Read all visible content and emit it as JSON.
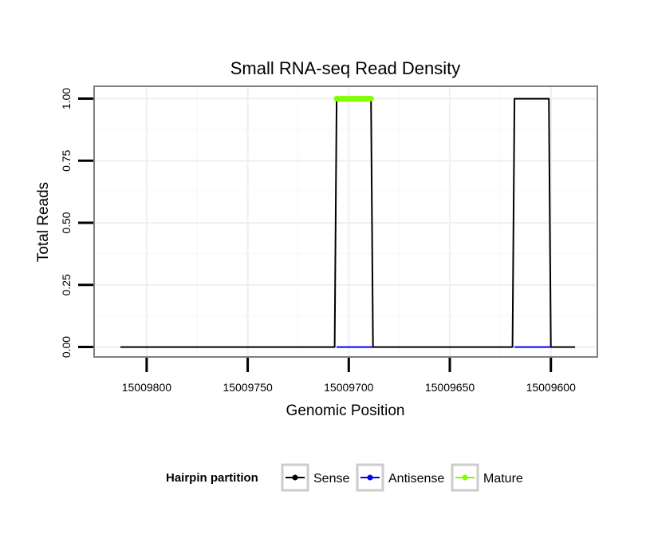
{
  "chart_data": {
    "type": "line",
    "title": "Small RNA-seq Read Density",
    "xlabel": "Genomic Position",
    "ylabel": "Total Reads",
    "x_reversed": true,
    "xlim": [
      15009826,
      15009577
    ],
    "ylim": [
      -0.04,
      1.05
    ],
    "x_ticks": [
      15009800,
      15009750,
      15009700,
      15009650,
      15009600
    ],
    "x_tick_labels": [
      "15009800",
      "15009750",
      "15009700",
      "15009650",
      "15009600"
    ],
    "y_ticks": [
      0,
      0.25,
      0.5,
      0.75,
      1.0
    ],
    "y_tick_labels": [
      "0.00",
      "0.25",
      "0.50",
      "0.75",
      "1.00"
    ],
    "grid": true,
    "legend": {
      "title": "Hairpin partition",
      "position": "bottom",
      "entries": [
        {
          "name": "Sense",
          "color": "#000000"
        },
        {
          "name": "Antisense",
          "color": "#0000ff"
        },
        {
          "name": "Mature",
          "color": "#7fff00"
        }
      ]
    },
    "series": [
      {
        "name": "Sense",
        "color": "#000000",
        "x": [
          15009813,
          15009707,
          15009706,
          15009689,
          15009688,
          15009619,
          15009618,
          15009601,
          15009600,
          15009588
        ],
        "y": [
          0,
          0,
          1,
          1,
          0,
          0,
          1,
          1,
          0,
          0
        ]
      },
      {
        "name": "Antisense",
        "color": "#0000ff",
        "x": [
          15009706,
          15009688
        ],
        "y": [
          0,
          0
        ]
      },
      {
        "name": "Antisense",
        "color": "#0000ff",
        "x": [
          15009618,
          15009600
        ],
        "y": [
          0,
          0
        ]
      },
      {
        "name": "Mature",
        "color": "#7fff00",
        "x": [
          15009706,
          15009689
        ],
        "y": [
          1,
          1
        ]
      }
    ]
  }
}
